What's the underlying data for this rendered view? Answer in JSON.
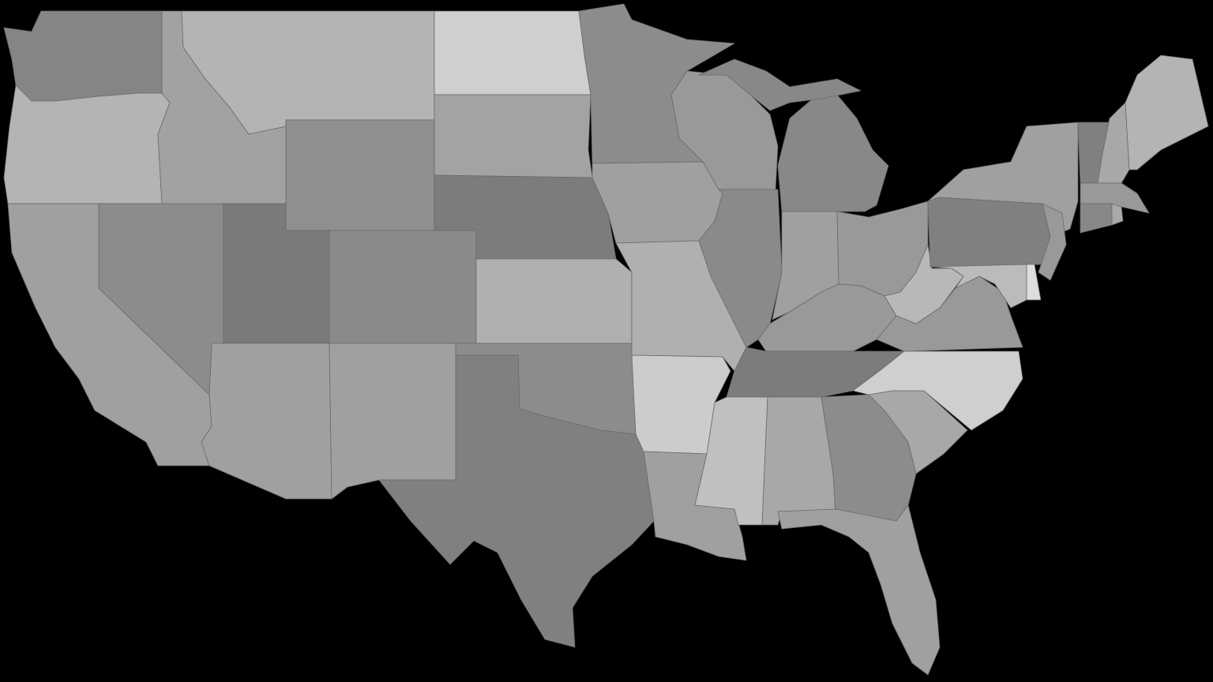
{
  "map": {
    "background": "#000000",
    "border_color": "#6a6a6a",
    "regions": [
      {
        "id": "WA",
        "fill": "#858585"
      },
      {
        "id": "OR",
        "fill": "#b4b4b4"
      },
      {
        "id": "CA",
        "fill": "#a0a0a0"
      },
      {
        "id": "NV",
        "fill": "#8c8c8c"
      },
      {
        "id": "ID",
        "fill": "#a2a2a2"
      },
      {
        "id": "MT",
        "fill": "#b4b4b4"
      },
      {
        "id": "ND",
        "fill": "#cfcfcf"
      },
      {
        "id": "SD",
        "fill": "#a3a3a3"
      },
      {
        "id": "WY",
        "fill": "#8f8f8f"
      },
      {
        "id": "NE",
        "fill": "#7c7c7c"
      },
      {
        "id": "UT",
        "fill": "#7a7a7a"
      },
      {
        "id": "CO",
        "fill": "#8a8a8a"
      },
      {
        "id": "KS",
        "fill": "#b0b0b0"
      },
      {
        "id": "AZ",
        "fill": "#a0a0a0"
      },
      {
        "id": "NM",
        "fill": "#a0a0a0"
      },
      {
        "id": "OK",
        "fill": "#8c8c8c"
      },
      {
        "id": "TX",
        "fill": "#808080"
      },
      {
        "id": "MN",
        "fill": "#8c8c8c"
      },
      {
        "id": "IA",
        "fill": "#a0a0a0"
      },
      {
        "id": "MO",
        "fill": "#b0b0b0"
      },
      {
        "id": "AR",
        "fill": "#cccccc"
      },
      {
        "id": "LA",
        "fill": "#a0a0a0"
      },
      {
        "id": "WI",
        "fill": "#999999"
      },
      {
        "id": "IL",
        "fill": "#8a8a8a"
      },
      {
        "id": "MI",
        "fill": "#888888"
      },
      {
        "id": "MI_UP",
        "fill": "#888888"
      },
      {
        "id": "IN",
        "fill": "#a0a0a0"
      },
      {
        "id": "OH",
        "fill": "#999999"
      },
      {
        "id": "KY",
        "fill": "#999999"
      },
      {
        "id": "TN",
        "fill": "#7c7c7c"
      },
      {
        "id": "MS",
        "fill": "#c0c0c0"
      },
      {
        "id": "AL",
        "fill": "#a8a8a8"
      },
      {
        "id": "GA",
        "fill": "#8c8c8c"
      },
      {
        "id": "FL",
        "fill": "#a0a0a0"
      },
      {
        "id": "SC",
        "fill": "#a8a8a8"
      },
      {
        "id": "NC",
        "fill": "#cfcfcf"
      },
      {
        "id": "VA",
        "fill": "#999999"
      },
      {
        "id": "WV",
        "fill": "#b8b8b8"
      },
      {
        "id": "PA",
        "fill": "#808080"
      },
      {
        "id": "NY",
        "fill": "#a0a0a0"
      },
      {
        "id": "MD",
        "fill": "#bbbbbb"
      },
      {
        "id": "DE",
        "fill": "#dddddd"
      },
      {
        "id": "NJ",
        "fill": "#999999"
      },
      {
        "id": "VT",
        "fill": "#808080"
      },
      {
        "id": "NH",
        "fill": "#a8a8a8"
      },
      {
        "id": "ME",
        "fill": "#b4b4b4"
      },
      {
        "id": "MA",
        "fill": "#999999"
      },
      {
        "id": "CT",
        "fill": "#888888"
      },
      {
        "id": "RI",
        "fill": "#aaaaaa"
      }
    ]
  }
}
